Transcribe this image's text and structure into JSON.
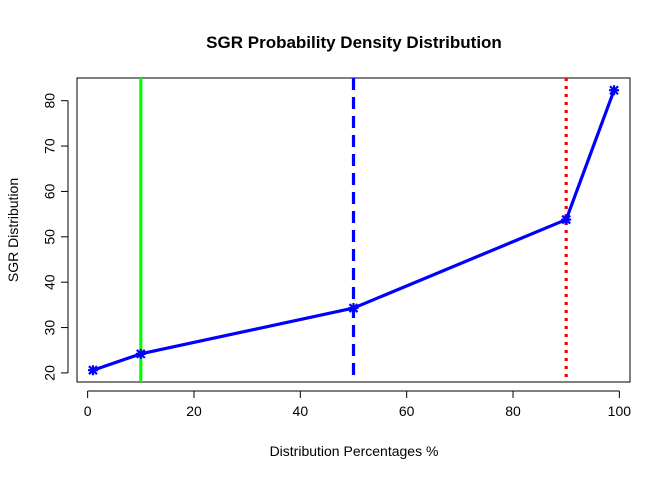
{
  "chart_data": {
    "type": "line",
    "title": "SGR Probability Density Distribution",
    "xlabel": "Distribution Percentages %",
    "ylabel": "SGR Distribution",
    "xlim": [
      -2,
      102
    ],
    "ylim": [
      18,
      85
    ],
    "x_ticks": [
      0,
      20,
      40,
      60,
      80,
      100
    ],
    "y_ticks": [
      20,
      30,
      40,
      50,
      60,
      70,
      80
    ],
    "grid": false,
    "series": [
      {
        "color": "#0000ff",
        "x": [
          1,
          10,
          50,
          90,
          99
        ],
        "y": [
          20.6,
          24.2,
          34.3,
          53.8,
          82.3
        ]
      }
    ],
    "vertical_lines": [
      {
        "x": 10,
        "color": "#00ff00",
        "style": "solid"
      },
      {
        "x": 50,
        "color": "#0000ff",
        "style": "dashed"
      },
      {
        "x": 90,
        "color": "#ff0000",
        "style": "dotted"
      }
    ]
  }
}
